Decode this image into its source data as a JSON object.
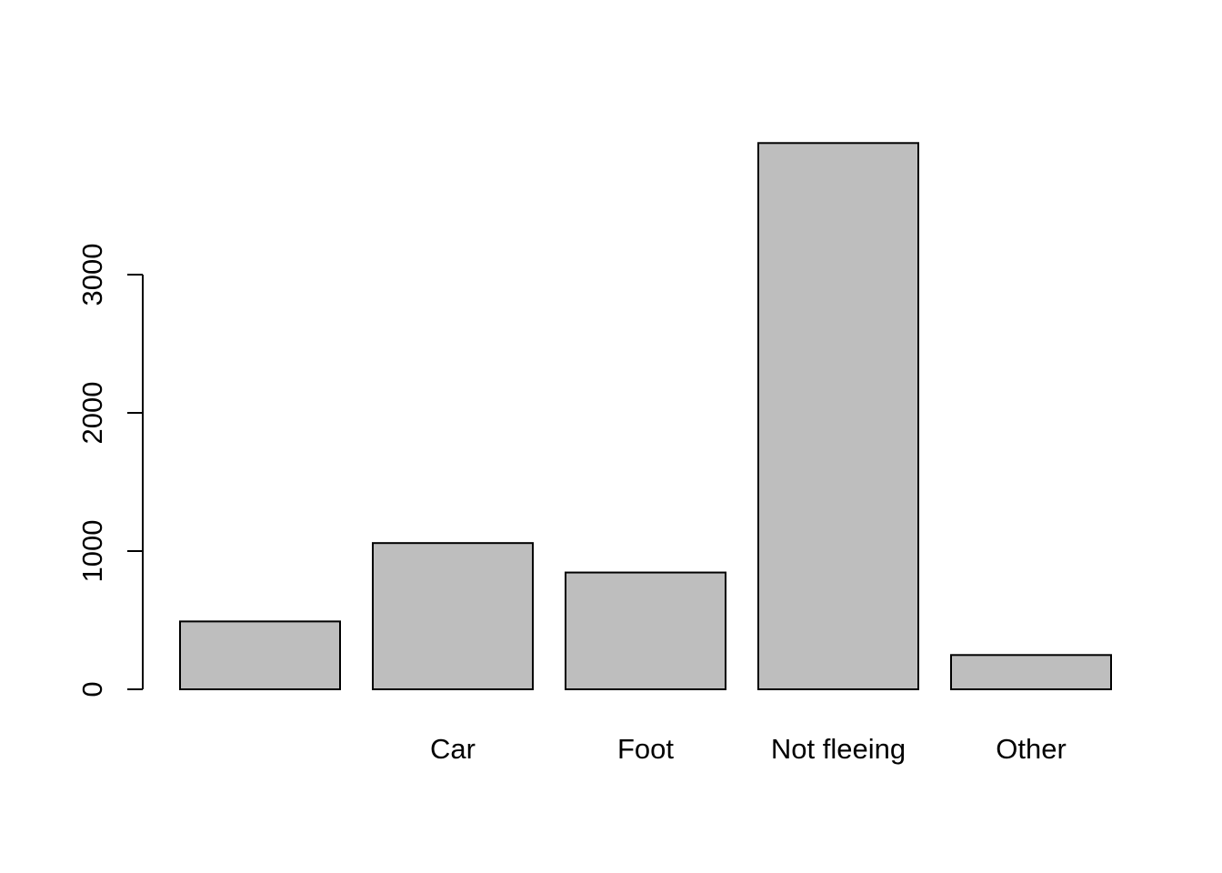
{
  "chart_data": {
    "type": "bar",
    "title": "",
    "xlabel": "",
    "ylabel": "",
    "categories": [
      "",
      "Car",
      "Foot",
      "Not fleeing",
      "Other"
    ],
    "values": [
      491,
      1058,
      845,
      3952,
      248
    ],
    "ylim": [
      0,
      4000
    ],
    "yticks": [
      0,
      1000,
      2000,
      3000
    ],
    "ytick_labels": [
      "0",
      "1000",
      "2000",
      "3000"
    ],
    "bar_color": "#bebebe",
    "border_color": "#000000",
    "grid": false,
    "legend": "none"
  }
}
